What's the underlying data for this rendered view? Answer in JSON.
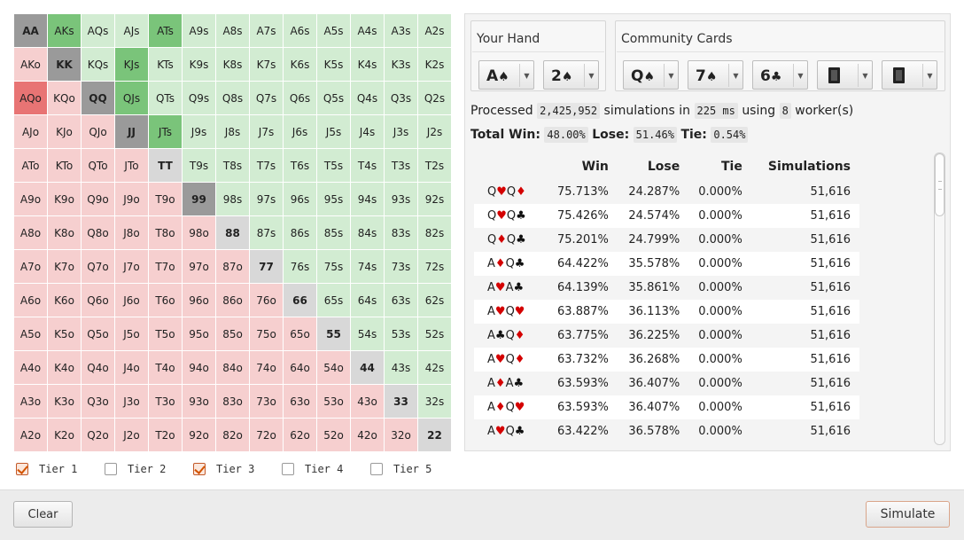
{
  "grid": {
    "rows": [
      [
        [
          "AA",
          "pair",
          1
        ],
        [
          "AKs",
          "suited",
          1
        ],
        [
          "AQs",
          "suited",
          0
        ],
        [
          "AJs",
          "suited",
          0
        ],
        [
          "ATs",
          "suited",
          1
        ],
        [
          "A9s",
          "suited",
          0
        ],
        [
          "A8s",
          "suited",
          0
        ],
        [
          "A7s",
          "suited",
          0
        ],
        [
          "A6s",
          "suited",
          0
        ],
        [
          "A5s",
          "suited",
          0
        ],
        [
          "A4s",
          "suited",
          0
        ],
        [
          "A3s",
          "suited",
          0
        ],
        [
          "A2s",
          "suited",
          0
        ]
      ],
      [
        [
          "AKo",
          "off",
          0
        ],
        [
          "KK",
          "pair",
          1
        ],
        [
          "KQs",
          "suited",
          0
        ],
        [
          "KJs",
          "suited",
          1
        ],
        [
          "KTs",
          "suited",
          0
        ],
        [
          "K9s",
          "suited",
          0
        ],
        [
          "K8s",
          "suited",
          0
        ],
        [
          "K7s",
          "suited",
          0
        ],
        [
          "K6s",
          "suited",
          0
        ],
        [
          "K5s",
          "suited",
          0
        ],
        [
          "K4s",
          "suited",
          0
        ],
        [
          "K3s",
          "suited",
          0
        ],
        [
          "K2s",
          "suited",
          0
        ]
      ],
      [
        [
          "AQo",
          "off",
          1
        ],
        [
          "KQo",
          "off",
          0
        ],
        [
          "QQ",
          "pair",
          1
        ],
        [
          "QJs",
          "suited",
          1
        ],
        [
          "QTs",
          "suited",
          0
        ],
        [
          "Q9s",
          "suited",
          0
        ],
        [
          "Q8s",
          "suited",
          0
        ],
        [
          "Q7s",
          "suited",
          0
        ],
        [
          "Q6s",
          "suited",
          0
        ],
        [
          "Q5s",
          "suited",
          0
        ],
        [
          "Q4s",
          "suited",
          0
        ],
        [
          "Q3s",
          "suited",
          0
        ],
        [
          "Q2s",
          "suited",
          0
        ]
      ],
      [
        [
          "AJo",
          "off",
          0
        ],
        [
          "KJo",
          "off",
          0
        ],
        [
          "QJo",
          "off",
          0
        ],
        [
          "JJ",
          "pair",
          1
        ],
        [
          "JTs",
          "suited",
          1
        ],
        [
          "J9s",
          "suited",
          0
        ],
        [
          "J8s",
          "suited",
          0
        ],
        [
          "J7s",
          "suited",
          0
        ],
        [
          "J6s",
          "suited",
          0
        ],
        [
          "J5s",
          "suited",
          0
        ],
        [
          "J4s",
          "suited",
          0
        ],
        [
          "J3s",
          "suited",
          0
        ],
        [
          "J2s",
          "suited",
          0
        ]
      ],
      [
        [
          "ATo",
          "off",
          0
        ],
        [
          "KTo",
          "off",
          0
        ],
        [
          "QTo",
          "off",
          0
        ],
        [
          "JTo",
          "off",
          0
        ],
        [
          "TT",
          "pair",
          0
        ],
        [
          "T9s",
          "suited",
          0
        ],
        [
          "T8s",
          "suited",
          0
        ],
        [
          "T7s",
          "suited",
          0
        ],
        [
          "T6s",
          "suited",
          0
        ],
        [
          "T5s",
          "suited",
          0
        ],
        [
          "T4s",
          "suited",
          0
        ],
        [
          "T3s",
          "suited",
          0
        ],
        [
          "T2s",
          "suited",
          0
        ]
      ],
      [
        [
          "A9o",
          "off",
          0
        ],
        [
          "K9o",
          "off",
          0
        ],
        [
          "Q9o",
          "off",
          0
        ],
        [
          "J9o",
          "off",
          0
        ],
        [
          "T9o",
          "off",
          0
        ],
        [
          "99",
          "pair",
          1
        ],
        [
          "98s",
          "suited",
          0
        ],
        [
          "97s",
          "suited",
          0
        ],
        [
          "96s",
          "suited",
          0
        ],
        [
          "95s",
          "suited",
          0
        ],
        [
          "94s",
          "suited",
          0
        ],
        [
          "93s",
          "suited",
          0
        ],
        [
          "92s",
          "suited",
          0
        ]
      ],
      [
        [
          "A8o",
          "off",
          0
        ],
        [
          "K8o",
          "off",
          0
        ],
        [
          "Q8o",
          "off",
          0
        ],
        [
          "J8o",
          "off",
          0
        ],
        [
          "T8o",
          "off",
          0
        ],
        [
          "98o",
          "off",
          0
        ],
        [
          "88",
          "pair",
          0
        ],
        [
          "87s",
          "suited",
          0
        ],
        [
          "86s",
          "suited",
          0
        ],
        [
          "85s",
          "suited",
          0
        ],
        [
          "84s",
          "suited",
          0
        ],
        [
          "83s",
          "suited",
          0
        ],
        [
          "82s",
          "suited",
          0
        ]
      ],
      [
        [
          "A7o",
          "off",
          0
        ],
        [
          "K7o",
          "off",
          0
        ],
        [
          "Q7o",
          "off",
          0
        ],
        [
          "J7o",
          "off",
          0
        ],
        [
          "T7o",
          "off",
          0
        ],
        [
          "97o",
          "off",
          0
        ],
        [
          "87o",
          "off",
          0
        ],
        [
          "77",
          "pair",
          0
        ],
        [
          "76s",
          "suited",
          0
        ],
        [
          "75s",
          "suited",
          0
        ],
        [
          "74s",
          "suited",
          0
        ],
        [
          "73s",
          "suited",
          0
        ],
        [
          "72s",
          "suited",
          0
        ]
      ],
      [
        [
          "A6o",
          "off",
          0
        ],
        [
          "K6o",
          "off",
          0
        ],
        [
          "Q6o",
          "off",
          0
        ],
        [
          "J6o",
          "off",
          0
        ],
        [
          "T6o",
          "off",
          0
        ],
        [
          "96o",
          "off",
          0
        ],
        [
          "86o",
          "off",
          0
        ],
        [
          "76o",
          "off",
          0
        ],
        [
          "66",
          "pair",
          0
        ],
        [
          "65s",
          "suited",
          0
        ],
        [
          "64s",
          "suited",
          0
        ],
        [
          "63s",
          "suited",
          0
        ],
        [
          "62s",
          "suited",
          0
        ]
      ],
      [
        [
          "A5o",
          "off",
          0
        ],
        [
          "K5o",
          "off",
          0
        ],
        [
          "Q5o",
          "off",
          0
        ],
        [
          "J5o",
          "off",
          0
        ],
        [
          "T5o",
          "off",
          0
        ],
        [
          "95o",
          "off",
          0
        ],
        [
          "85o",
          "off",
          0
        ],
        [
          "75o",
          "off",
          0
        ],
        [
          "65o",
          "off",
          0
        ],
        [
          "55",
          "pair",
          0
        ],
        [
          "54s",
          "suited",
          0
        ],
        [
          "53s",
          "suited",
          0
        ],
        [
          "52s",
          "suited",
          0
        ]
      ],
      [
        [
          "A4o",
          "off",
          0
        ],
        [
          "K4o",
          "off",
          0
        ],
        [
          "Q4o",
          "off",
          0
        ],
        [
          "J4o",
          "off",
          0
        ],
        [
          "T4o",
          "off",
          0
        ],
        [
          "94o",
          "off",
          0
        ],
        [
          "84o",
          "off",
          0
        ],
        [
          "74o",
          "off",
          0
        ],
        [
          "64o",
          "off",
          0
        ],
        [
          "54o",
          "off",
          0
        ],
        [
          "44",
          "pair",
          0
        ],
        [
          "43s",
          "suited",
          0
        ],
        [
          "42s",
          "suited",
          0
        ]
      ],
      [
        [
          "A3o",
          "off",
          0
        ],
        [
          "K3o",
          "off",
          0
        ],
        [
          "Q3o",
          "off",
          0
        ],
        [
          "J3o",
          "off",
          0
        ],
        [
          "T3o",
          "off",
          0
        ],
        [
          "93o",
          "off",
          0
        ],
        [
          "83o",
          "off",
          0
        ],
        [
          "73o",
          "off",
          0
        ],
        [
          "63o",
          "off",
          0
        ],
        [
          "53o",
          "off",
          0
        ],
        [
          "43o",
          "off",
          0
        ],
        [
          "33",
          "pair",
          0
        ],
        [
          "32s",
          "suited",
          0
        ]
      ],
      [
        [
          "A2o",
          "off",
          0
        ],
        [
          "K2o",
          "off",
          0
        ],
        [
          "Q2o",
          "off",
          0
        ],
        [
          "J2o",
          "off",
          0
        ],
        [
          "T2o",
          "off",
          0
        ],
        [
          "92o",
          "off",
          0
        ],
        [
          "82o",
          "off",
          0
        ],
        [
          "72o",
          "off",
          0
        ],
        [
          "62o",
          "off",
          0
        ],
        [
          "52o",
          "off",
          0
        ],
        [
          "42o",
          "off",
          0
        ],
        [
          "32o",
          "off",
          0
        ],
        [
          "22",
          "pair",
          0
        ]
      ]
    ]
  },
  "tiers": [
    {
      "label": "Tier 1",
      "checked": true
    },
    {
      "label": "Tier 2",
      "checked": false
    },
    {
      "label": "Tier 3",
      "checked": true
    },
    {
      "label": "Tier 4",
      "checked": false
    },
    {
      "label": "Tier 5",
      "checked": false
    }
  ],
  "buttons": {
    "clear": "Clear",
    "simulate": "Simulate"
  },
  "your_hand": {
    "title": "Your Hand",
    "cards": [
      {
        "rank": "A",
        "suit": "♠",
        "color": "black"
      },
      {
        "rank": "2",
        "suit": "♠",
        "color": "black"
      }
    ]
  },
  "community": {
    "title": "Community Cards",
    "cards": [
      {
        "rank": "Q",
        "suit": "♠",
        "color": "black"
      },
      {
        "rank": "7",
        "suit": "♠",
        "color": "black"
      },
      {
        "rank": "6",
        "suit": "♣",
        "color": "black"
      },
      {
        "rank": "",
        "suit": "",
        "color": "blank"
      },
      {
        "rank": "",
        "suit": "",
        "color": "blank"
      }
    ]
  },
  "stats": {
    "processed_label": "Processed",
    "processed_value": "2,425,952",
    "simulations_label": "simulations in",
    "time_value": "225 ms",
    "using_label": "using",
    "workers_value": "8",
    "workers_label": "worker(s)",
    "total_win_label": "Total Win:",
    "total_win_value": "48.00%",
    "lose_label": "Lose:",
    "lose_value": "51.46%",
    "tie_label": "Tie:",
    "tie_value": "0.54%"
  },
  "results": {
    "headers": [
      "",
      "Win",
      "Lose",
      "Tie",
      "Simulations"
    ],
    "rows": [
      {
        "hand": [
          [
            "Q",
            "♥",
            "red"
          ],
          [
            "Q",
            "♦",
            "red"
          ]
        ],
        "win": "75.713%",
        "lose": "24.287%",
        "tie": "0.000%",
        "sims": "51,616"
      },
      {
        "hand": [
          [
            "Q",
            "♥",
            "red"
          ],
          [
            "Q",
            "♣",
            "blk"
          ]
        ],
        "win": "75.426%",
        "lose": "24.574%",
        "tie": "0.000%",
        "sims": "51,616"
      },
      {
        "hand": [
          [
            "Q",
            "♦",
            "red"
          ],
          [
            "Q",
            "♣",
            "blk"
          ]
        ],
        "win": "75.201%",
        "lose": "24.799%",
        "tie": "0.000%",
        "sims": "51,616"
      },
      {
        "hand": [
          [
            "A",
            "♦",
            "red"
          ],
          [
            "Q",
            "♣",
            "blk"
          ]
        ],
        "win": "64.422%",
        "lose": "35.578%",
        "tie": "0.000%",
        "sims": "51,616"
      },
      {
        "hand": [
          [
            "A",
            "♥",
            "red"
          ],
          [
            "A",
            "♣",
            "blk"
          ]
        ],
        "win": "64.139%",
        "lose": "35.861%",
        "tie": "0.000%",
        "sims": "51,616"
      },
      {
        "hand": [
          [
            "A",
            "♥",
            "red"
          ],
          [
            "Q",
            "♥",
            "red"
          ]
        ],
        "win": "63.887%",
        "lose": "36.113%",
        "tie": "0.000%",
        "sims": "51,616"
      },
      {
        "hand": [
          [
            "A",
            "♣",
            "blk"
          ],
          [
            "Q",
            "♦",
            "red"
          ]
        ],
        "win": "63.775%",
        "lose": "36.225%",
        "tie": "0.000%",
        "sims": "51,616"
      },
      {
        "hand": [
          [
            "A",
            "♥",
            "red"
          ],
          [
            "Q",
            "♦",
            "red"
          ]
        ],
        "win": "63.732%",
        "lose": "36.268%",
        "tie": "0.000%",
        "sims": "51,616"
      },
      {
        "hand": [
          [
            "A",
            "♦",
            "red"
          ],
          [
            "A",
            "♣",
            "blk"
          ]
        ],
        "win": "63.593%",
        "lose": "36.407%",
        "tie": "0.000%",
        "sims": "51,616"
      },
      {
        "hand": [
          [
            "A",
            "♦",
            "red"
          ],
          [
            "Q",
            "♥",
            "red"
          ]
        ],
        "win": "63.593%",
        "lose": "36.407%",
        "tie": "0.000%",
        "sims": "51,616"
      },
      {
        "hand": [
          [
            "A",
            "♥",
            "red"
          ],
          [
            "Q",
            "♣",
            "blk"
          ]
        ],
        "win": "63.422%",
        "lose": "36.578%",
        "tie": "0.000%",
        "sims": "51,616"
      }
    ]
  }
}
